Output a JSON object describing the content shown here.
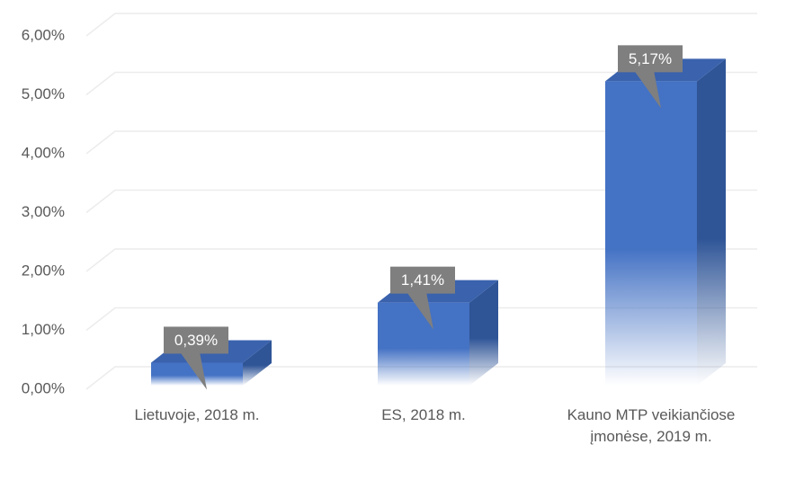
{
  "chart_data": {
    "type": "bar3d",
    "categories": [
      "Lietuvoje, 2018 m.",
      "ES, 2018 m.",
      "Kauno MTP veikiančiose įmonėse, 2019 m."
    ],
    "values": [
      0.39,
      1.41,
      5.17
    ],
    "value_labels": [
      "0,39%",
      "1,41%",
      "5,17%"
    ],
    "color": "#4472c4",
    "ylim": [
      0,
      6
    ],
    "yticks": [
      {
        "value": 0,
        "label": "0,00%"
      },
      {
        "value": 1,
        "label": "1,00%"
      },
      {
        "value": 2,
        "label": "2,00%"
      },
      {
        "value": 3,
        "label": "3,00%"
      },
      {
        "value": 4,
        "label": "4,00%"
      },
      {
        "value": 5,
        "label": "5,00%"
      },
      {
        "value": 6,
        "label": "6,00%"
      }
    ],
    "grid": true
  }
}
